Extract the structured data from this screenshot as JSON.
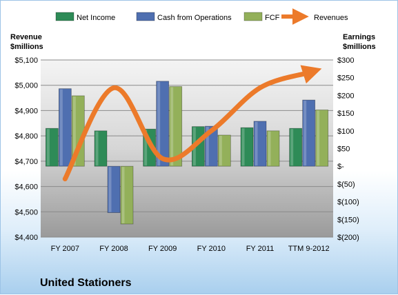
{
  "chart_data": {
    "type": "bar",
    "title": "United Stationers",
    "categories": [
      "FY 2007",
      "FY 2008",
      "FY 2009",
      "FY 2010",
      "FY 2011",
      "TTM 9-2012"
    ],
    "series": [
      {
        "name": "Net Income",
        "axis": "right",
        "color": "#2e8b57",
        "values": [
          107,
          100,
          105,
          112,
          109,
          107
        ]
      },
      {
        "name": "Cash from Operations",
        "axis": "right",
        "color": "#4f6fb0",
        "values": [
          219,
          -131,
          240,
          113,
          127,
          187
        ]
      },
      {
        "name": "FCF",
        "axis": "right",
        "color": "#93b05a",
        "values": [
          199,
          -163,
          225,
          88,
          100,
          159
        ]
      }
    ],
    "line_series": {
      "name": "Revenues",
      "axis": "left",
      "color": "#ec7a2a",
      "values": [
        4630,
        4990,
        4710,
        4820,
        4990,
        5050
      ]
    },
    "left_axis": {
      "title": [
        "Revenue",
        "$millions"
      ],
      "min": 4400,
      "max": 5100,
      "step": 100,
      "tick_labels": [
        "$4,400",
        "$4,500",
        "$4,600",
        "$4,700",
        "$4,800",
        "$4,900",
        "$5,000",
        "$5,100"
      ]
    },
    "right_axis": {
      "title": [
        "Earnings",
        "$millions"
      ],
      "min": -200,
      "max": 300,
      "step": 50,
      "tick_labels": [
        "$(200)",
        "$(150)",
        "$(100)",
        "$(50)",
        "$-",
        "$50",
        "$100",
        "$150",
        "$200",
        "$250",
        "$300"
      ]
    },
    "legend_position": "top",
    "grid": true
  }
}
